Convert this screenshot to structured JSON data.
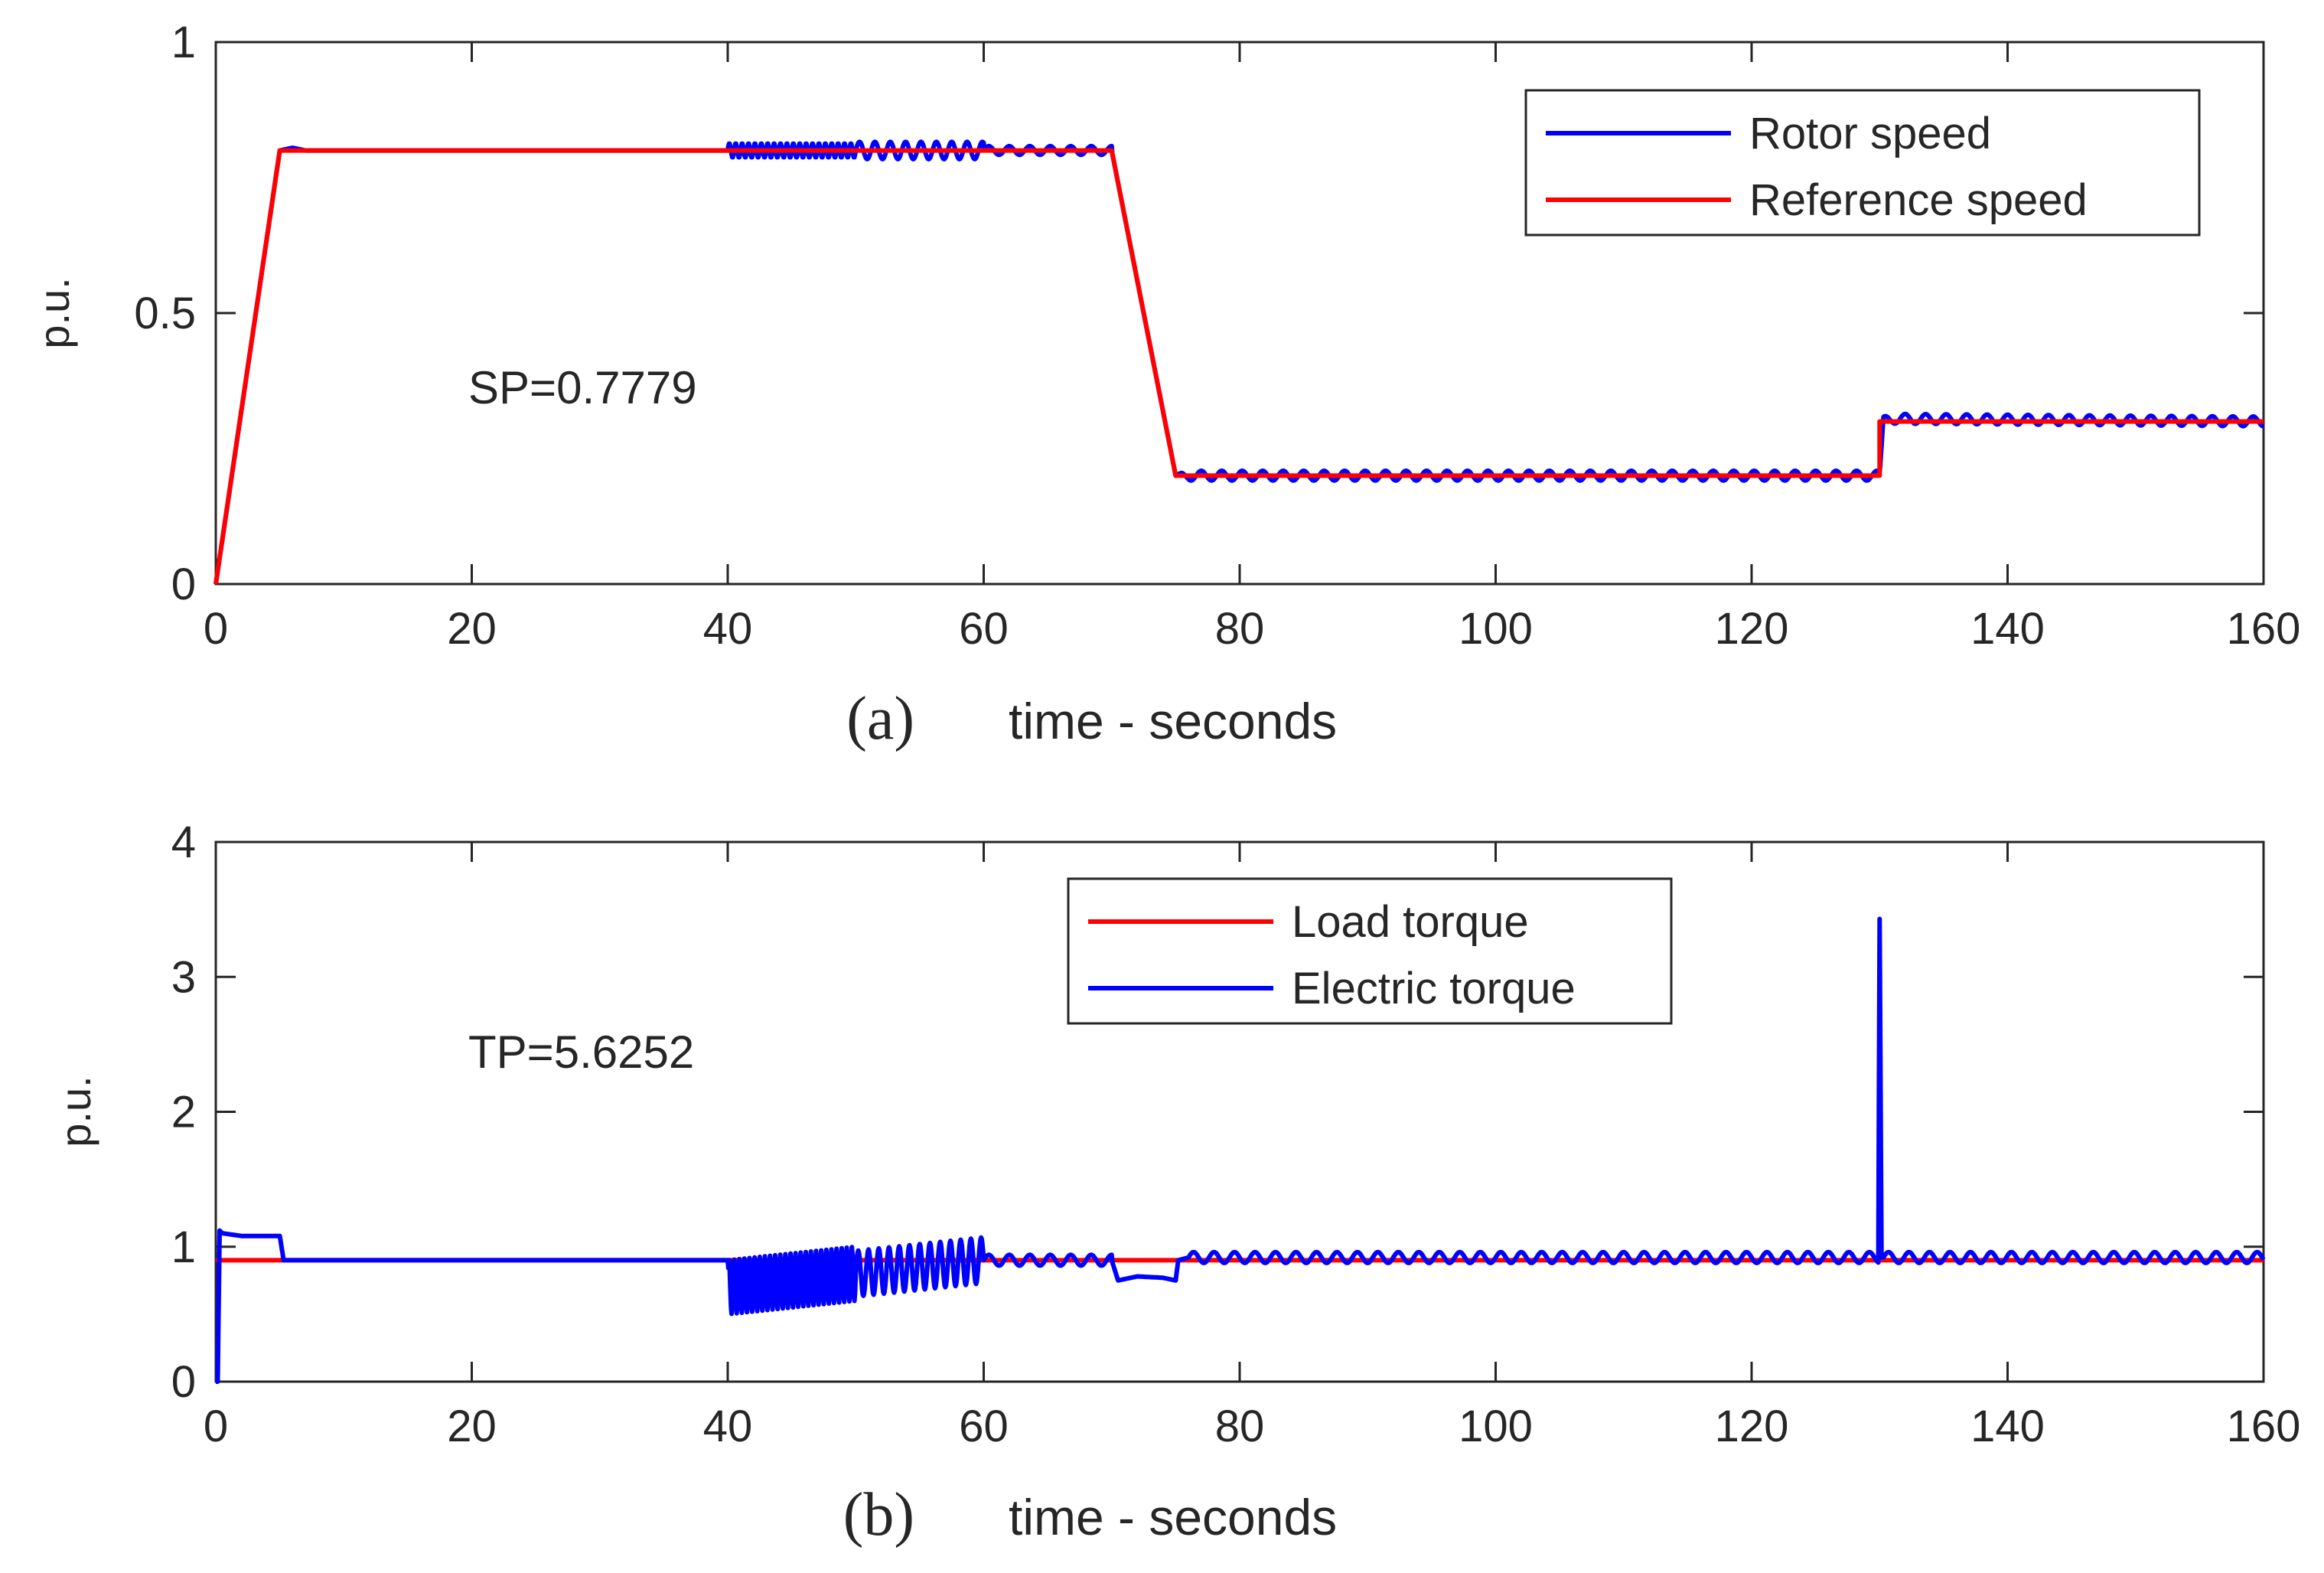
{
  "chart_data": [
    {
      "type": "line",
      "panel_label": "(a)",
      "xlabel": "time - seconds",
      "ylabel": "p.u.",
      "xlim": [
        0,
        160
      ],
      "ylim": [
        0,
        1
      ],
      "xticks": [
        "0",
        "20",
        "40",
        "60",
        "80",
        "100",
        "120",
        "140",
        "160"
      ],
      "yticks": [
        "0",
        "0.5",
        "1"
      ],
      "annotation": "SP=0.7779",
      "legend_position": "top-right",
      "series": [
        {
          "name": "Rotor speed",
          "color": "#0000ff",
          "x": [
            0,
            5,
            6,
            7,
            8,
            40,
            60,
            70,
            75,
            75.3,
            76,
            130,
            130.3,
            131,
            160
          ],
          "y": [
            0,
            0.8,
            0.805,
            0.8,
            0.8,
            0.8,
            0.8,
            0.8,
            0.2,
            0.195,
            0.2,
            0.2,
            0.3,
            0.305,
            0.3
          ],
          "oscillation_segments": [
            {
              "start": 40,
              "end": 50,
              "amplitude": 0.013,
              "period": 0.5
            },
            {
              "start": 50,
              "end": 60,
              "amplitude": 0.016,
              "period": 1.2
            },
            {
              "start": 60,
              "end": 70,
              "amplitude": 0.008,
              "period": 1.6
            },
            {
              "start": 75,
              "end": 130,
              "amplitude": 0.009,
              "period": 1.6
            },
            {
              "start": 130,
              "end": 160,
              "amplitude": 0.009,
              "period": 1.6
            }
          ]
        },
        {
          "name": "Reference speed",
          "color": "#ff0000",
          "x": [
            0,
            5,
            70,
            75,
            130,
            130,
            160
          ],
          "y": [
            0,
            0.8,
            0.8,
            0.2,
            0.2,
            0.3,
            0.3
          ]
        }
      ]
    },
    {
      "type": "line",
      "panel_label": "(b)",
      "xlabel": "time - seconds",
      "ylabel": "p.u.",
      "xlim": [
        0,
        160
      ],
      "ylim": [
        0,
        4
      ],
      "xticks": [
        "0",
        "20",
        "40",
        "60",
        "80",
        "100",
        "120",
        "140",
        "160"
      ],
      "yticks": [
        "0",
        "1",
        "2",
        "3",
        "4"
      ],
      "annotation": "TP=5.6252",
      "legend_position": "top-right",
      "series": [
        {
          "name": "Load torque",
          "color": "#ff0000",
          "x": [
            0,
            160
          ],
          "y": [
            0.9,
            0.9
          ]
        },
        {
          "name": "Electric torque",
          "color": "#0000ff",
          "x": [
            0,
            0.15,
            0.3,
            0.5,
            2,
            5,
            5.3,
            6,
            40,
            40.05,
            60,
            70,
            70.5,
            72,
            74,
            75,
            75.2,
            76,
            129.9,
            130,
            130.15,
            130.3,
            131,
            160
          ],
          "y": [
            0,
            0,
            1.12,
            1.1,
            1.08,
            1.08,
            0.9,
            0.9,
            0.9,
            0.7,
            0.9,
            0.9,
            0.75,
            0.78,
            0.77,
            0.75,
            0.9,
            0.92,
            0.92,
            3.47,
            0.92,
            0.92,
            0.92,
            0.92
          ],
          "oscillation_segments": [
            {
              "start": 40,
              "end": 50,
              "amplitude": 0.2,
              "period": 0.4
            },
            {
              "start": 50,
              "end": 60,
              "amplitude": 0.17,
              "period": 0.8
            },
            {
              "start": 60,
              "end": 70,
              "amplitude": 0.04,
              "period": 1.6
            },
            {
              "start": 76,
              "end": 130,
              "amplitude": 0.04,
              "period": 1.6
            },
            {
              "start": 130.3,
              "end": 160,
              "amplitude": 0.04,
              "period": 1.6
            }
          ]
        }
      ]
    }
  ]
}
